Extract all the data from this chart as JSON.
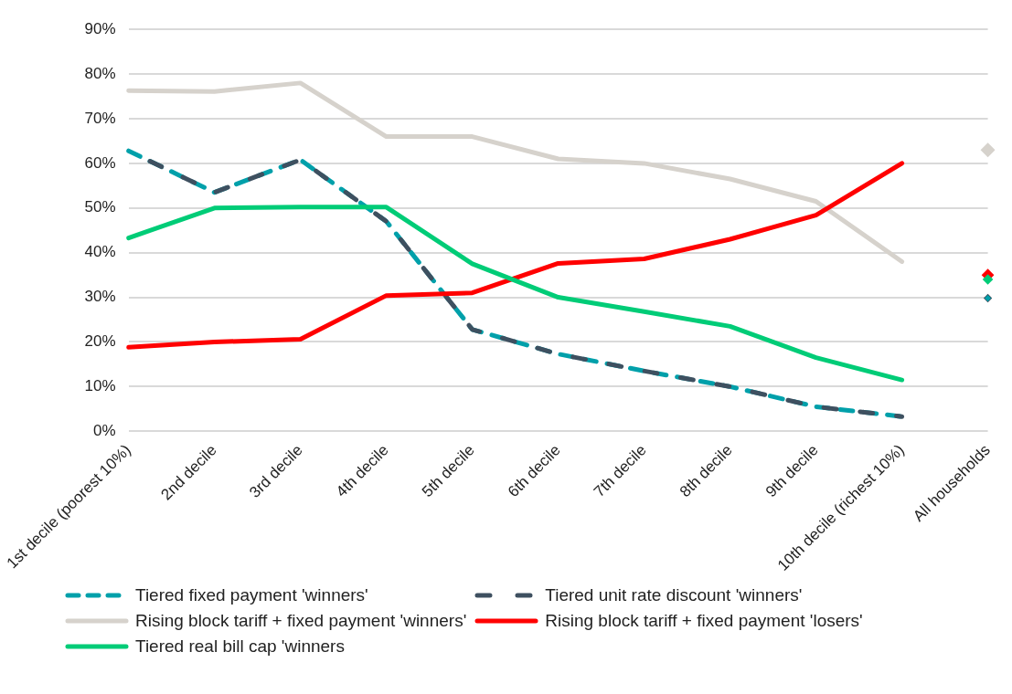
{
  "chart_data": {
    "type": "line",
    "categories": [
      "1st decile (poorest 10%)",
      "2nd decile",
      "3rd decile",
      "4th decile",
      "5th decile",
      "6th decile",
      "7th decile",
      "8th decile",
      "9th decile",
      "10th decile (richest 10%)",
      "All households"
    ],
    "ylim": [
      0,
      90
    ],
    "yticks": [
      {
        "value": 0,
        "label": "0%"
      },
      {
        "value": 10,
        "label": "10%"
      },
      {
        "value": 20,
        "label": "20%"
      },
      {
        "value": 30,
        "label": "30%"
      },
      {
        "value": 40,
        "label": "40%"
      },
      {
        "value": 50,
        "label": "50%"
      },
      {
        "value": 60,
        "label": "60%"
      },
      {
        "value": 70,
        "label": "70%"
      },
      {
        "value": 80,
        "label": "80%"
      },
      {
        "value": 90,
        "label": "90%"
      }
    ],
    "grid": "y",
    "legend": "bottom",
    "series": [
      {
        "name": "Tiered fixed payment 'winners'",
        "color": "#00a0aa",
        "line_style": "dashed",
        "values": [
          62.8,
          53.5,
          60.8,
          47,
          22.8,
          17.3,
          13.5,
          10,
          5.5,
          3.3,
          null
        ]
      },
      {
        "name": "Tiered unit rate discount 'winners'",
        "color": "#3e5060",
        "line_style": "dashed",
        "values": [
          62.8,
          53.5,
          60.8,
          47,
          22.8,
          17.3,
          13.5,
          10,
          5.5,
          3.3,
          null
        ]
      },
      {
        "name": "Rising block tariff + fixed payment 'winners'",
        "color": "#d6d2cc",
        "line_style": "solid",
        "values": [
          76.3,
          76.1,
          78,
          66,
          66,
          61,
          60,
          56.5,
          51.5,
          38,
          null
        ]
      },
      {
        "name": "Rising block tariff + fixed payment 'losers'",
        "color": "#ff0000",
        "line_style": "solid",
        "values": [
          18.8,
          20,
          20.6,
          30.4,
          31,
          37.6,
          38.6,
          43,
          48.4,
          60,
          null
        ]
      },
      {
        "name": "Tiered real bill cap 'winners",
        "color": "#00cc77",
        "line_style": "solid",
        "values": [
          43.3,
          50,
          50.2,
          50.2,
          37.5,
          30,
          26.8,
          23.5,
          16.5,
          11.5,
          null
        ]
      },
      {
        "type": "scatter",
        "marker": "diamond",
        "color": "#d6d2cc",
        "x": [
          "All households"
        ],
        "values": [
          63
        ]
      },
      {
        "type": "scatter",
        "marker": "diamond",
        "color": "#ff0000",
        "x": [
          "All households"
        ],
        "values": [
          35
        ]
      },
      {
        "type": "scatter",
        "marker": "diamond",
        "color": "#00cc77",
        "x": [
          "All households"
        ],
        "values": [
          34
        ]
      },
      {
        "type": "scatter",
        "marker": "diamond",
        "color": "#3e5060",
        "x": [
          "All households"
        ],
        "values": [
          29.8
        ]
      },
      {
        "type": "scatter",
        "marker": "diamond",
        "color": "#00a0aa",
        "x": [
          "All households"
        ],
        "values": [
          29.8
        ]
      }
    ]
  }
}
